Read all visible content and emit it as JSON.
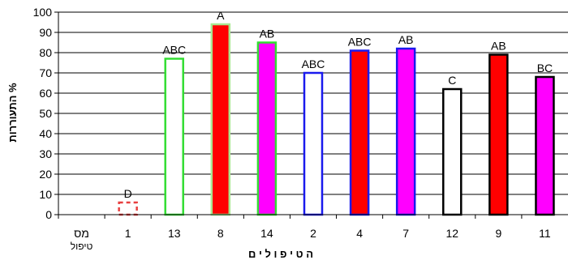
{
  "chart_data": {
    "type": "bar",
    "categories": [
      "מס טיפול",
      "1",
      "13",
      "8",
      "14",
      "2",
      "4",
      "7",
      "12",
      "9",
      "11"
    ],
    "category_lines": [
      [
        "מס",
        "טיפול"
      ],
      [
        "1"
      ],
      [
        "13"
      ],
      [
        "8"
      ],
      [
        "14"
      ],
      [
        "2"
      ],
      [
        "4"
      ],
      [
        "7"
      ],
      [
        "12"
      ],
      [
        "9"
      ],
      [
        "11"
      ]
    ],
    "values": [
      0,
      6,
      77,
      94,
      85,
      70,
      81,
      82,
      62,
      79,
      68
    ],
    "annotations": [
      "",
      "D",
      "ABC",
      "A",
      "AB",
      "ABC",
      "ABC",
      "AB",
      "C",
      "AB",
      "BC"
    ],
    "bar_styles": [
      {
        "fill": "none",
        "stroke": "none",
        "dash": ""
      },
      {
        "fill": "none",
        "stroke": "#e84040",
        "dash": "5,4"
      },
      {
        "fill": "#ffffff",
        "stroke": "#33dd33",
        "dash": ""
      },
      {
        "fill": "#ff0000",
        "stroke": "#a8e890",
        "dash": ""
      },
      {
        "fill": "#ff00ff",
        "stroke": "#33dd33",
        "dash": ""
      },
      {
        "fill": "#ffffff",
        "stroke": "#1a1aee",
        "dash": ""
      },
      {
        "fill": "#ff0000",
        "stroke": "#1a1aee",
        "dash": ""
      },
      {
        "fill": "#ff00ff",
        "stroke": "#1a1aee",
        "dash": ""
      },
      {
        "fill": "#ffffff",
        "stroke": "#000000",
        "dash": ""
      },
      {
        "fill": "#ff0000",
        "stroke": "#000000",
        "dash": ""
      },
      {
        "fill": "#ff00ff",
        "stroke": "#000000",
        "dash": ""
      }
    ],
    "ylabel": "% התעוררות",
    "xlabel": "ה ט י פ ו ל י ם",
    "ylim": [
      0,
      100
    ],
    "yticks": [
      0,
      10,
      20,
      30,
      40,
      50,
      60,
      70,
      80,
      90,
      100
    ],
    "grid": true
  }
}
